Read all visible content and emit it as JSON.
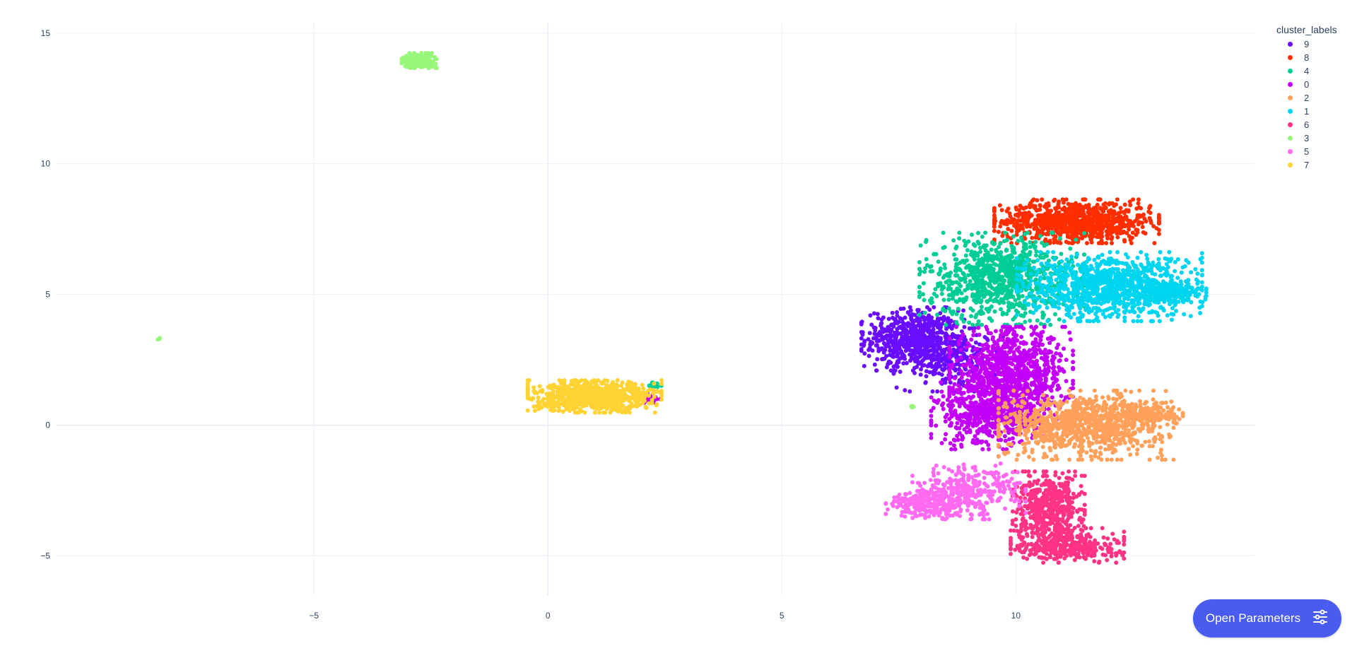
{
  "chart_data": {
    "type": "scatter",
    "title": "",
    "xlabel": "",
    "ylabel": "",
    "xlim": [
      -10.5,
      15.1
    ],
    "ylim": [
      -6.5,
      15.4
    ],
    "x_ticks": [
      -5,
      0,
      5,
      10
    ],
    "y_ticks": [
      -5,
      0,
      5,
      10,
      15
    ],
    "x_tick_labels": [
      "−5",
      "0",
      "5",
      "10"
    ],
    "y_tick_labels": [
      "−5",
      "0",
      "5",
      "10",
      "15"
    ],
    "grid": true,
    "legend_title": "cluster_labels",
    "legend_position": "top-right",
    "series": [
      {
        "name": "9",
        "color": "#6a0dff",
        "clusters": [
          {
            "cx": 7.8,
            "cy": 3.3,
            "sx": 0.5,
            "sy": 0.55,
            "n": 600
          },
          {
            "cx": 8.6,
            "cy": 2.5,
            "sx": 0.55,
            "sy": 0.55,
            "n": 250
          }
        ]
      },
      {
        "name": "8",
        "color": "#ff2e00",
        "clusters": [
          {
            "cx": 11.3,
            "cy": 7.8,
            "sx": 0.8,
            "sy": 0.38,
            "n": 900
          }
        ]
      },
      {
        "name": "4",
        "color": "#00cc96",
        "clusters": [
          {
            "cx": 9.7,
            "cy": 5.6,
            "sx": 0.8,
            "sy": 0.8,
            "n": 900
          },
          {
            "cx": 2.25,
            "cy": 1.55,
            "sx": 0.08,
            "sy": 0.07,
            "n": 20
          }
        ]
      },
      {
        "name": "0",
        "color": "#c300f7",
        "clusters": [
          {
            "cx": 9.9,
            "cy": 2.0,
            "sx": 0.6,
            "sy": 0.8,
            "n": 900
          },
          {
            "cx": 9.4,
            "cy": 0.4,
            "sx": 0.55,
            "sy": 0.6,
            "n": 500
          },
          {
            "cx": 2.2,
            "cy": 1.0,
            "sx": 0.1,
            "sy": 0.15,
            "n": 20
          }
        ]
      },
      {
        "name": "2",
        "color": "#ffa15a",
        "clusters": [
          {
            "cx": 11.5,
            "cy": 0.0,
            "sx": 0.85,
            "sy": 0.6,
            "n": 900
          },
          {
            "cx": 12.8,
            "cy": 0.4,
            "sx": 0.35,
            "sy": 0.22,
            "n": 150
          }
        ]
      },
      {
        "name": "1",
        "color": "#00d5f0",
        "clusters": [
          {
            "cx": 12.0,
            "cy": 5.3,
            "sx": 0.9,
            "sy": 0.6,
            "n": 1000
          },
          {
            "cx": 13.3,
            "cy": 5.1,
            "sx": 0.35,
            "sy": 0.18,
            "n": 200
          }
        ]
      },
      {
        "name": "6",
        "color": "#ff3385",
        "clusters": [
          {
            "cx": 10.7,
            "cy": -3.2,
            "sx": 0.35,
            "sy": 0.65,
            "n": 500
          },
          {
            "cx": 11.1,
            "cy": -4.6,
            "sx": 0.55,
            "sy": 0.3,
            "n": 350
          }
        ]
      },
      {
        "name": "3",
        "color": "#98f77a",
        "clusters": [
          {
            "cx": -2.75,
            "cy": 13.95,
            "sx": 0.17,
            "sy": 0.13,
            "n": 260
          },
          {
            "cx": -8.3,
            "cy": 3.3,
            "sx": 0.02,
            "sy": 0.02,
            "n": 3
          },
          {
            "cx": 7.8,
            "cy": 0.7,
            "sx": 0.05,
            "sy": 0.02,
            "n": 5
          }
        ]
      },
      {
        "name": "5",
        "color": "#ff6af0",
        "clusters": [
          {
            "cx": 8.1,
            "cy": -3.0,
            "sx": 0.4,
            "sy": 0.25,
            "n": 250
          },
          {
            "cx": 9.0,
            "cy": -2.5,
            "sx": 0.55,
            "sy": 0.5,
            "n": 300
          }
        ]
      },
      {
        "name": "7",
        "color": "#ffd334",
        "clusters": [
          {
            "cx": 1.0,
            "cy": 1.1,
            "sx": 0.65,
            "sy": 0.28,
            "n": 800
          }
        ]
      }
    ]
  },
  "button": {
    "label": "Open Parameters",
    "icon": "sliders-icon"
  }
}
